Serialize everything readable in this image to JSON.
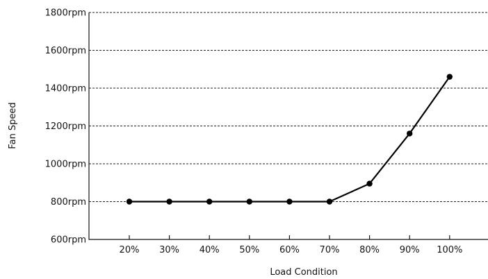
{
  "chart_data": {
    "type": "line",
    "title": "",
    "xlabel": "Load Condition",
    "ylabel": "Fan Speed",
    "categories": [
      "20%",
      "30%",
      "40%",
      "50%",
      "60%",
      "70%",
      "80%",
      "90%",
      "100%"
    ],
    "series": [
      {
        "values": [
          800,
          800,
          800,
          800,
          800,
          800,
          895,
          1160,
          1460
        ],
        "color": "#000000"
      }
    ],
    "ylim": [
      600,
      1800
    ],
    "yticks": [
      600,
      800,
      1000,
      1200,
      1400,
      1600,
      1800
    ],
    "ytick_labels": [
      "600rpm",
      "800rpm",
      "1000rpm",
      "1200rpm",
      "1400rpm",
      "1600rpm",
      "1800rpm"
    ],
    "grid": "horizontal-dotted",
    "legend": "none"
  }
}
